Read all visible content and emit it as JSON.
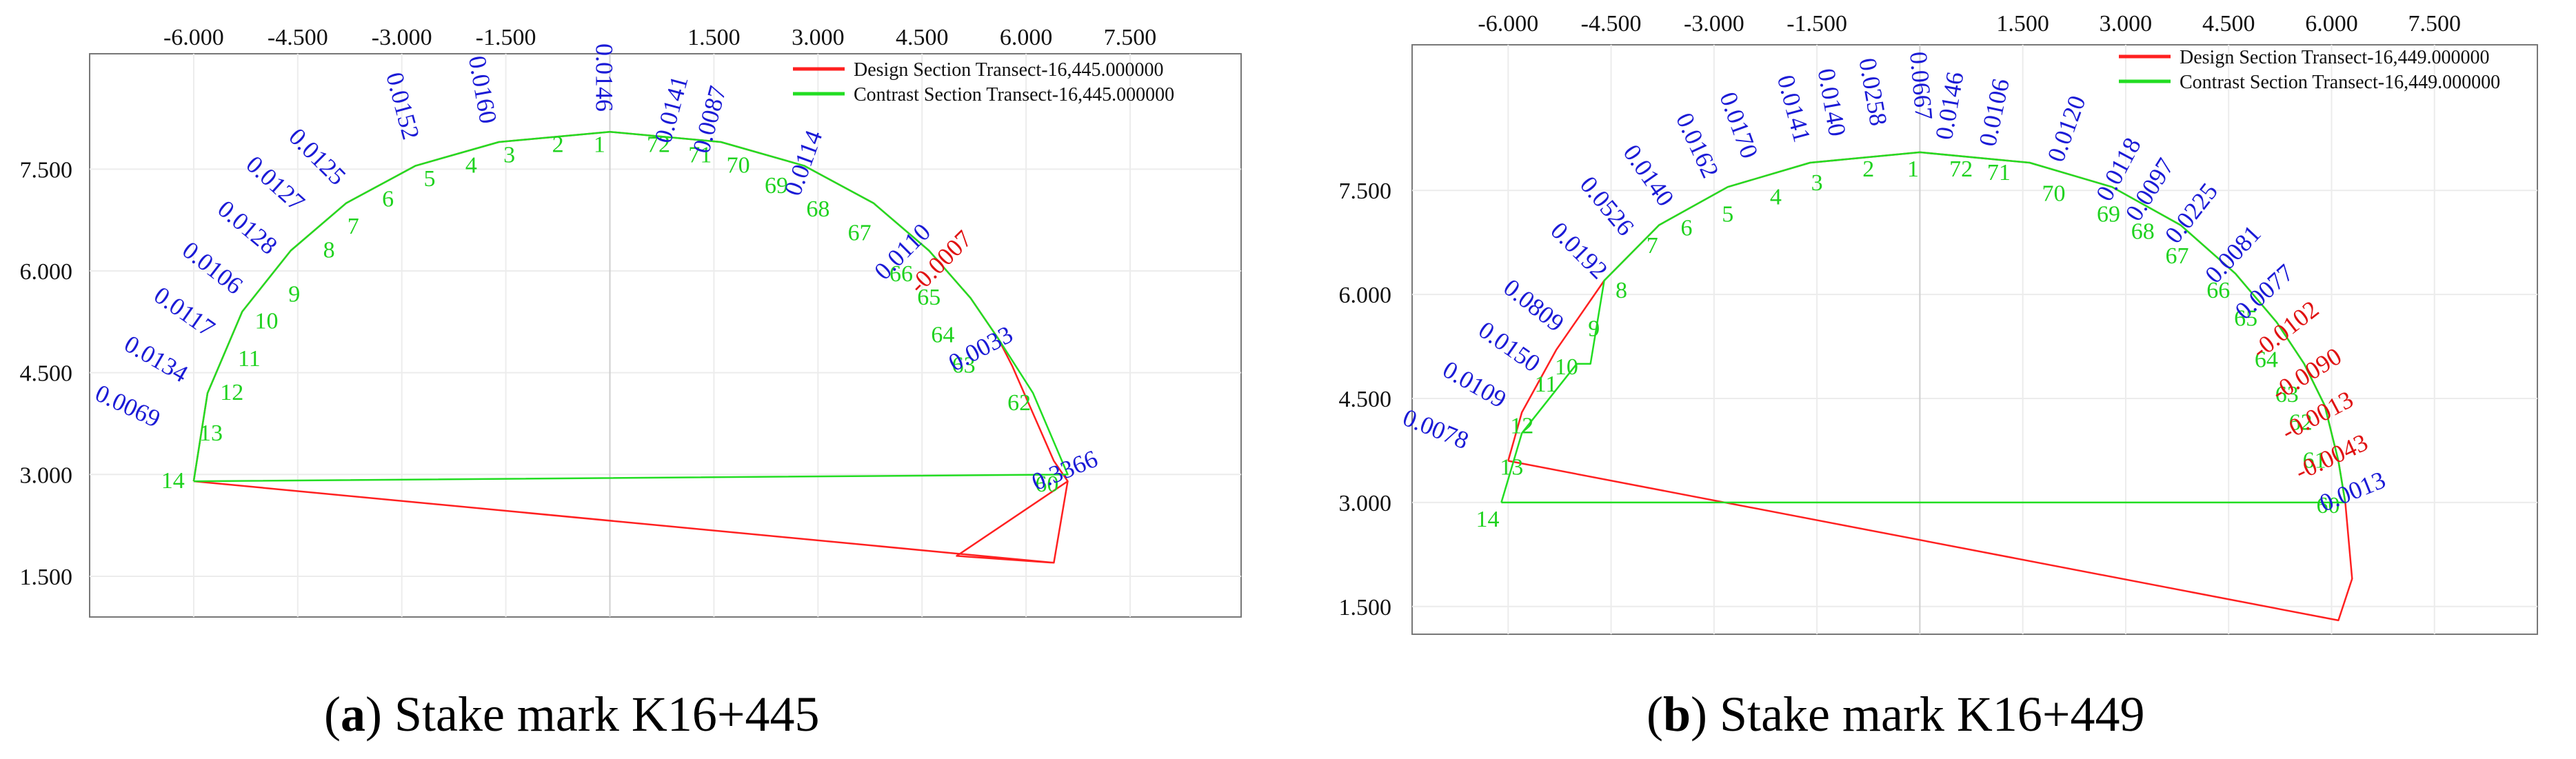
{
  "chart_data": [
    {
      "type": "line",
      "caption_letter": "a",
      "caption_text": "Stake mark K16+445",
      "x_ticks": [
        "-6.000",
        "-4.500",
        "-3.000",
        "-1.500",
        "1.500",
        "3.000",
        "4.500",
        "6.000",
        "7.500"
      ],
      "x_tick_values": [
        -6,
        -4.5,
        -3,
        -1.5,
        1.5,
        3,
        4.5,
        6,
        7.5
      ],
      "y_ticks": [
        "7.500",
        "6.000",
        "4.500",
        "3.000",
        "1.500"
      ],
      "y_tick_values": [
        7.5,
        6,
        4.5,
        3,
        1.5
      ],
      "xlim": [
        -7.5,
        9.1
      ],
      "ylim": [
        0.9,
        9.2
      ],
      "grid": true,
      "legend_position": "top-right",
      "legend": [
        {
          "name": "Design Section Transect-16,445.000000",
          "color": "#ff2020"
        },
        {
          "name": "Contrast Section Transect-16,445.000000",
          "color": "#22dd22"
        }
      ],
      "series": [
        {
          "name": "Design Section Transect-16,445.000000",
          "color": "#ff2020",
          "x": [
            -6.0,
            -5.8,
            -5.3,
            -4.6,
            -3.8,
            -2.8,
            -1.6,
            0,
            1.6,
            2.8,
            3.8,
            4.6,
            5.2,
            5.6,
            5.8,
            6.1,
            6.4,
            6.6,
            5.0,
            6.4,
            6.6,
            6.4,
            -6.0
          ],
          "y": [
            2.9,
            4.2,
            5.4,
            6.3,
            7.0,
            7.55,
            7.9,
            8.05,
            7.9,
            7.55,
            7.0,
            6.3,
            5.6,
            5.0,
            4.6,
            3.9,
            3.2,
            2.9,
            1.8,
            1.7,
            2.9,
            1.7,
            2.9
          ]
        },
        {
          "name": "Contrast Section Transect-16,445.000000",
          "color": "#22dd22",
          "x": [
            -6.0,
            -5.8,
            -5.3,
            -4.6,
            -3.8,
            -2.8,
            -1.6,
            0,
            1.6,
            2.8,
            3.8,
            4.6,
            5.2,
            5.6,
            6.1,
            6.6,
            -6.0
          ],
          "y": [
            2.9,
            4.2,
            5.4,
            6.3,
            7.0,
            7.55,
            7.9,
            8.05,
            7.9,
            7.55,
            7.0,
            6.3,
            5.6,
            5.0,
            4.2,
            3.0,
            2.9
          ]
        }
      ],
      "point_labels": [
        {
          "label": "1",
          "x": -0.15,
          "y": 7.75
        },
        {
          "label": "2",
          "x": -0.75,
          "y": 7.75
        },
        {
          "label": "3",
          "x": -1.45,
          "y": 7.6
        },
        {
          "label": "4",
          "x": -2.0,
          "y": 7.45
        },
        {
          "label": "5",
          "x": -2.6,
          "y": 7.25
        },
        {
          "label": "6",
          "x": -3.2,
          "y": 6.95
        },
        {
          "label": "7",
          "x": -3.7,
          "y": 6.55
        },
        {
          "label": "8",
          "x": -4.05,
          "y": 6.2
        },
        {
          "label": "9",
          "x": -4.55,
          "y": 5.55
        },
        {
          "label": "10",
          "x": -4.95,
          "y": 5.15
        },
        {
          "label": "11",
          "x": -5.2,
          "y": 4.6
        },
        {
          "label": "12",
          "x": -5.45,
          "y": 4.1
        },
        {
          "label": "13",
          "x": -5.75,
          "y": 3.5
        },
        {
          "label": "14",
          "x": -6.3,
          "y": 2.8
        },
        {
          "label": "72",
          "x": 0.7,
          "y": 7.75
        },
        {
          "label": "71",
          "x": 1.3,
          "y": 7.6
        },
        {
          "label": "70",
          "x": 1.85,
          "y": 7.45
        },
        {
          "label": "69",
          "x": 2.4,
          "y": 7.15
        },
        {
          "label": "68",
          "x": 3.0,
          "y": 6.8
        },
        {
          "label": "67",
          "x": 3.6,
          "y": 6.45
        },
        {
          "label": "66",
          "x": 4.2,
          "y": 5.85
        },
        {
          "label": "65",
          "x": 4.6,
          "y": 5.5
        },
        {
          "label": "64",
          "x": 4.8,
          "y": 4.95
        },
        {
          "label": "63",
          "x": 5.1,
          "y": 4.5
        },
        {
          "label": "62",
          "x": 5.9,
          "y": 3.95
        },
        {
          "label": "60",
          "x": 6.3,
          "y": 2.75
        }
      ],
      "deviation_labels": [
        {
          "label": "0.0146",
          "x": -0.2,
          "y": 8.85,
          "rotation": 90,
          "color": "#1a1ad6"
        },
        {
          "label": "0.0160",
          "x": -1.95,
          "y": 8.65,
          "rotation": 80,
          "color": "#1a1ad6"
        },
        {
          "label": "0.0152",
          "x": -3.1,
          "y": 8.4,
          "rotation": 75,
          "color": "#1a1ad6"
        },
        {
          "label": "0.0125",
          "x": -4.3,
          "y": 7.6,
          "rotation": 45,
          "color": "#1a1ad6"
        },
        {
          "label": "0.0127",
          "x": -4.9,
          "y": 7.2,
          "rotation": 42,
          "color": "#1a1ad6"
        },
        {
          "label": "0.0128",
          "x": -5.3,
          "y": 6.55,
          "rotation": 40,
          "color": "#1a1ad6"
        },
        {
          "label": "0.0106",
          "x": -5.8,
          "y": 5.95,
          "rotation": 38,
          "color": "#1a1ad6"
        },
        {
          "label": "0.0117",
          "x": -6.2,
          "y": 5.3,
          "rotation": 35,
          "color": "#1a1ad6"
        },
        {
          "label": "0.0134",
          "x": -6.6,
          "y": 4.6,
          "rotation": 30,
          "color": "#1a1ad6"
        },
        {
          "label": "0.0069",
          "x": -7.0,
          "y": 3.9,
          "rotation": 25,
          "color": "#1a1ad6"
        },
        {
          "label": "0.0141",
          "x": 1.0,
          "y": 8.35,
          "rotation": -75,
          "color": "#1a1ad6"
        },
        {
          "label": "0.0087",
          "x": 1.55,
          "y": 8.2,
          "rotation": -75,
          "color": "#1a1ad6"
        },
        {
          "label": "0.0114",
          "x": 2.9,
          "y": 7.55,
          "rotation": -70,
          "color": "#1a1ad6"
        },
        {
          "label": "0.0110",
          "x": 4.3,
          "y": 6.2,
          "rotation": -45,
          "color": "#1a1ad6"
        },
        {
          "label": "-0.0007",
          "x": 4.85,
          "y": 6.05,
          "rotation": -45,
          "color": "#e01010"
        },
        {
          "label": "0.0033",
          "x": 5.4,
          "y": 4.75,
          "rotation": -28,
          "color": "#1a1ad6"
        },
        {
          "label": "0.3366",
          "x": 6.6,
          "y": 2.95,
          "rotation": -22,
          "color": "#1a1ad6"
        }
      ]
    },
    {
      "type": "line",
      "caption_letter": "b",
      "caption_text": "Stake mark K16+449",
      "x_ticks": [
        "-6.000",
        "-4.500",
        "-3.000",
        "-1.500",
        "1.500",
        "3.000",
        "4.500",
        "6.000",
        "7.500"
      ],
      "x_tick_values": [
        -6,
        -4.5,
        -3,
        -1.5,
        1.5,
        3,
        4.5,
        6,
        7.5
      ],
      "y_ticks": [
        "7.500",
        "6.000",
        "4.500",
        "3.000",
        "1.500"
      ],
      "y_tick_values": [
        7.5,
        6,
        4.5,
        3,
        1.5
      ],
      "xlim": [
        -7.4,
        9.0
      ],
      "ylim": [
        1.1,
        9.6
      ],
      "grid": true,
      "legend_position": "top-right",
      "legend": [
        {
          "name": "Design Section Transect-16,449.000000",
          "color": "#ff2020"
        },
        {
          "name": "Contrast Section Transect-16,449.000000",
          "color": "#22dd22"
        }
      ],
      "series": [
        {
          "name": "Design Section Transect-16,449.000000",
          "color": "#ff2020",
          "x": [
            -6.0,
            -5.8,
            -5.3,
            -4.6,
            -3.8,
            -2.8,
            -1.6,
            0,
            1.6,
            2.8,
            3.8,
            4.6,
            5.2,
            5.6,
            5.9,
            6.1,
            6.2,
            6.3,
            6.1,
            -6.0
          ],
          "y": [
            3.6,
            4.3,
            5.2,
            6.2,
            7.0,
            7.55,
            7.9,
            8.05,
            7.9,
            7.55,
            7.0,
            6.3,
            5.6,
            5.0,
            4.4,
            3.6,
            3.0,
            1.9,
            1.3,
            3.6
          ]
        },
        {
          "name": "Contrast Section Transect-16,449.000000",
          "color": "#22dd22",
          "x": [
            -6.1,
            -5.8,
            -5.0,
            -4.8,
            -4.6,
            -3.8,
            -2.8,
            -1.6,
            0,
            1.6,
            2.8,
            3.8,
            4.6,
            5.2,
            5.6,
            5.9,
            6.1,
            6.2,
            -6.1
          ],
          "y": [
            3.0,
            4.0,
            5.0,
            5.0,
            6.2,
            7.0,
            7.55,
            7.9,
            8.05,
            7.9,
            7.55,
            7.0,
            6.3,
            5.6,
            5.0,
            4.4,
            3.6,
            3.0,
            3.0
          ]
        }
      ],
      "point_labels": [
        {
          "label": "1",
          "x": -0.1,
          "y": 7.7
        },
        {
          "label": "2",
          "x": -0.75,
          "y": 7.7
        },
        {
          "label": "3",
          "x": -1.5,
          "y": 7.5
        },
        {
          "label": "4",
          "x": -2.1,
          "y": 7.3
        },
        {
          "label": "5",
          "x": -2.8,
          "y": 7.05
        },
        {
          "label": "6",
          "x": -3.4,
          "y": 6.85
        },
        {
          "label": "7",
          "x": -3.9,
          "y": 6.6
        },
        {
          "label": "8",
          "x": -4.35,
          "y": 5.95
        },
        {
          "label": "9",
          "x": -4.75,
          "y": 5.4
        },
        {
          "label": "10",
          "x": -5.15,
          "y": 4.85
        },
        {
          "label": "11",
          "x": -5.45,
          "y": 4.6
        },
        {
          "label": "12",
          "x": -5.8,
          "y": 4.0
        },
        {
          "label": "13",
          "x": -5.95,
          "y": 3.4
        },
        {
          "label": "14",
          "x": -6.3,
          "y": 2.65
        },
        {
          "label": "72",
          "x": 0.6,
          "y": 7.7
        },
        {
          "label": "71",
          "x": 1.15,
          "y": 7.65
        },
        {
          "label": "70",
          "x": 1.95,
          "y": 7.35
        },
        {
          "label": "69",
          "x": 2.75,
          "y": 7.05
        },
        {
          "label": "68",
          "x": 3.25,
          "y": 6.8
        },
        {
          "label": "67",
          "x": 3.75,
          "y": 6.45
        },
        {
          "label": "66",
          "x": 4.35,
          "y": 5.95
        },
        {
          "label": "65",
          "x": 4.75,
          "y": 5.55
        },
        {
          "label": "64",
          "x": 5.05,
          "y": 4.95
        },
        {
          "label": "63",
          "x": 5.35,
          "y": 4.45
        },
        {
          "label": "62",
          "x": 5.55,
          "y": 4.05
        },
        {
          "label": "61",
          "x": 5.75,
          "y": 3.5
        },
        {
          "label": "60",
          "x": 5.95,
          "y": 2.85
        }
      ],
      "deviation_labels": [
        {
          "label": "0.0667",
          "x": -0.1,
          "y": 9.0,
          "rotation": 85,
          "color": "#1a1ad6"
        },
        {
          "label": "0.0258",
          "x": -0.8,
          "y": 8.9,
          "rotation": 80,
          "color": "#1a1ad6"
        },
        {
          "label": "0.0140",
          "x": -1.4,
          "y": 8.75,
          "rotation": 80,
          "color": "#1a1ad6"
        },
        {
          "label": "0.0141",
          "x": -1.95,
          "y": 8.65,
          "rotation": 75,
          "color": "#1a1ad6"
        },
        {
          "label": "0.0170",
          "x": -2.75,
          "y": 8.4,
          "rotation": 70,
          "color": "#1a1ad6"
        },
        {
          "label": "0.0162",
          "x": -3.35,
          "y": 8.1,
          "rotation": 65,
          "color": "#1a1ad6"
        },
        {
          "label": "0.0140",
          "x": -4.05,
          "y": 7.65,
          "rotation": 55,
          "color": "#1a1ad6"
        },
        {
          "label": "0.0526",
          "x": -4.65,
          "y": 7.2,
          "rotation": 50,
          "color": "#1a1ad6"
        },
        {
          "label": "0.0192",
          "x": -5.05,
          "y": 6.55,
          "rotation": 45,
          "color": "#1a1ad6"
        },
        {
          "label": "0.0809",
          "x": -5.7,
          "y": 5.75,
          "rotation": 38,
          "color": "#1a1ad6"
        },
        {
          "label": "0.0150",
          "x": -6.05,
          "y": 5.15,
          "rotation": 35,
          "color": "#1a1ad6"
        },
        {
          "label": "0.0109",
          "x": -6.55,
          "y": 4.6,
          "rotation": 30,
          "color": "#1a1ad6"
        },
        {
          "label": "0.0078",
          "x": -7.1,
          "y": 3.95,
          "rotation": 22,
          "color": "#1a1ad6"
        },
        {
          "label": "0.0146",
          "x": 0.55,
          "y": 8.7,
          "rotation": -80,
          "color": "#1a1ad6"
        },
        {
          "label": "0.0106",
          "x": 1.2,
          "y": 8.6,
          "rotation": -78,
          "color": "#1a1ad6"
        },
        {
          "label": "0.0120",
          "x": 2.25,
          "y": 8.35,
          "rotation": -70,
          "color": "#1a1ad6"
        },
        {
          "label": "0.0118",
          "x": 3.0,
          "y": 7.75,
          "rotation": -62,
          "color": "#1a1ad6"
        },
        {
          "label": "0.0097",
          "x": 3.45,
          "y": 7.45,
          "rotation": -58,
          "color": "#1a1ad6"
        },
        {
          "label": "0.0225",
          "x": 4.05,
          "y": 7.1,
          "rotation": -52,
          "color": "#1a1ad6"
        },
        {
          "label": "0.0081",
          "x": 4.65,
          "y": 6.5,
          "rotation": -47,
          "color": "#1a1ad6"
        },
        {
          "label": "0.0077",
          "x": 5.1,
          "y": 5.95,
          "rotation": -42,
          "color": "#1a1ad6"
        },
        {
          "label": "-0.0102",
          "x": 5.4,
          "y": 5.4,
          "rotation": -38,
          "color": "#e01010"
        },
        {
          "label": "-0.0090",
          "x": 5.7,
          "y": 4.75,
          "rotation": -32,
          "color": "#e01010"
        },
        {
          "label": "-0.0013",
          "x": 5.85,
          "y": 4.15,
          "rotation": -28,
          "color": "#e01010"
        },
        {
          "label": "-0.0043",
          "x": 6.05,
          "y": 3.55,
          "rotation": -25,
          "color": "#e01010"
        },
        {
          "label": "0.0013",
          "x": 6.35,
          "y": 3.05,
          "rotation": -22,
          "color": "#1a1ad6"
        }
      ]
    }
  ]
}
